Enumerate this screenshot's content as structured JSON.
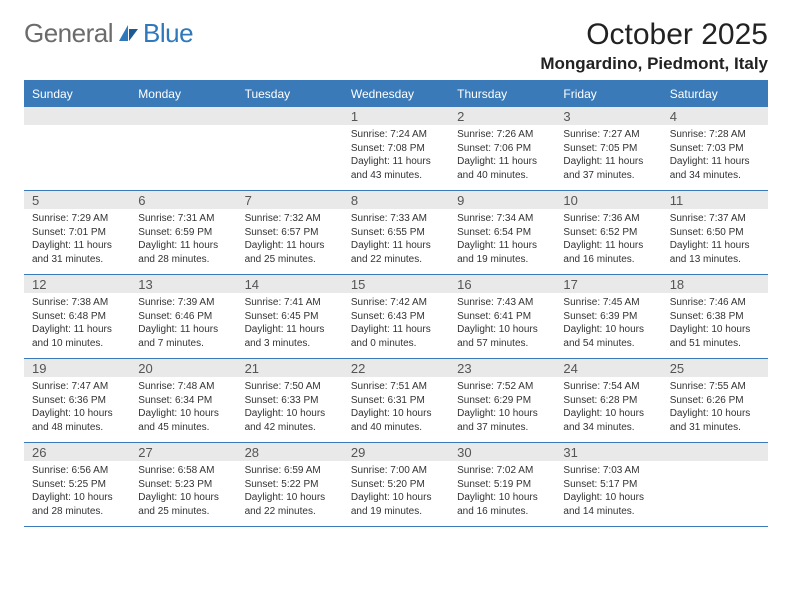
{
  "brand": {
    "general": "General",
    "blue": "Blue"
  },
  "title": "October 2025",
  "location": "Mongardino, Piedmont, Italy",
  "colors": {
    "accent": "#3a7ab8",
    "daynum_bg": "#e9e9e9",
    "text": "#333333",
    "muted": "#6b6b6b",
    "white": "#ffffff"
  },
  "dow": [
    "Sunday",
    "Monday",
    "Tuesday",
    "Wednesday",
    "Thursday",
    "Friday",
    "Saturday"
  ],
  "weeks": [
    {
      "daynums": [
        "",
        "",
        "",
        "1",
        "2",
        "3",
        "4"
      ],
      "cells": [
        null,
        null,
        null,
        {
          "sunrise": "Sunrise: 7:24 AM",
          "sunset": "Sunset: 7:08 PM",
          "day1": "Daylight: 11 hours",
          "day2": "and 43 minutes."
        },
        {
          "sunrise": "Sunrise: 7:26 AM",
          "sunset": "Sunset: 7:06 PM",
          "day1": "Daylight: 11 hours",
          "day2": "and 40 minutes."
        },
        {
          "sunrise": "Sunrise: 7:27 AM",
          "sunset": "Sunset: 7:05 PM",
          "day1": "Daylight: 11 hours",
          "day2": "and 37 minutes."
        },
        {
          "sunrise": "Sunrise: 7:28 AM",
          "sunset": "Sunset: 7:03 PM",
          "day1": "Daylight: 11 hours",
          "day2": "and 34 minutes."
        }
      ]
    },
    {
      "daynums": [
        "5",
        "6",
        "7",
        "8",
        "9",
        "10",
        "11"
      ],
      "cells": [
        {
          "sunrise": "Sunrise: 7:29 AM",
          "sunset": "Sunset: 7:01 PM",
          "day1": "Daylight: 11 hours",
          "day2": "and 31 minutes."
        },
        {
          "sunrise": "Sunrise: 7:31 AM",
          "sunset": "Sunset: 6:59 PM",
          "day1": "Daylight: 11 hours",
          "day2": "and 28 minutes."
        },
        {
          "sunrise": "Sunrise: 7:32 AM",
          "sunset": "Sunset: 6:57 PM",
          "day1": "Daylight: 11 hours",
          "day2": "and 25 minutes."
        },
        {
          "sunrise": "Sunrise: 7:33 AM",
          "sunset": "Sunset: 6:55 PM",
          "day1": "Daylight: 11 hours",
          "day2": "and 22 minutes."
        },
        {
          "sunrise": "Sunrise: 7:34 AM",
          "sunset": "Sunset: 6:54 PM",
          "day1": "Daylight: 11 hours",
          "day2": "and 19 minutes."
        },
        {
          "sunrise": "Sunrise: 7:36 AM",
          "sunset": "Sunset: 6:52 PM",
          "day1": "Daylight: 11 hours",
          "day2": "and 16 minutes."
        },
        {
          "sunrise": "Sunrise: 7:37 AM",
          "sunset": "Sunset: 6:50 PM",
          "day1": "Daylight: 11 hours",
          "day2": "and 13 minutes."
        }
      ]
    },
    {
      "daynums": [
        "12",
        "13",
        "14",
        "15",
        "16",
        "17",
        "18"
      ],
      "cells": [
        {
          "sunrise": "Sunrise: 7:38 AM",
          "sunset": "Sunset: 6:48 PM",
          "day1": "Daylight: 11 hours",
          "day2": "and 10 minutes."
        },
        {
          "sunrise": "Sunrise: 7:39 AM",
          "sunset": "Sunset: 6:46 PM",
          "day1": "Daylight: 11 hours",
          "day2": "and 7 minutes."
        },
        {
          "sunrise": "Sunrise: 7:41 AM",
          "sunset": "Sunset: 6:45 PM",
          "day1": "Daylight: 11 hours",
          "day2": "and 3 minutes."
        },
        {
          "sunrise": "Sunrise: 7:42 AM",
          "sunset": "Sunset: 6:43 PM",
          "day1": "Daylight: 11 hours",
          "day2": "and 0 minutes."
        },
        {
          "sunrise": "Sunrise: 7:43 AM",
          "sunset": "Sunset: 6:41 PM",
          "day1": "Daylight: 10 hours",
          "day2": "and 57 minutes."
        },
        {
          "sunrise": "Sunrise: 7:45 AM",
          "sunset": "Sunset: 6:39 PM",
          "day1": "Daylight: 10 hours",
          "day2": "and 54 minutes."
        },
        {
          "sunrise": "Sunrise: 7:46 AM",
          "sunset": "Sunset: 6:38 PM",
          "day1": "Daylight: 10 hours",
          "day2": "and 51 minutes."
        }
      ]
    },
    {
      "daynums": [
        "19",
        "20",
        "21",
        "22",
        "23",
        "24",
        "25"
      ],
      "cells": [
        {
          "sunrise": "Sunrise: 7:47 AM",
          "sunset": "Sunset: 6:36 PM",
          "day1": "Daylight: 10 hours",
          "day2": "and 48 minutes."
        },
        {
          "sunrise": "Sunrise: 7:48 AM",
          "sunset": "Sunset: 6:34 PM",
          "day1": "Daylight: 10 hours",
          "day2": "and 45 minutes."
        },
        {
          "sunrise": "Sunrise: 7:50 AM",
          "sunset": "Sunset: 6:33 PM",
          "day1": "Daylight: 10 hours",
          "day2": "and 42 minutes."
        },
        {
          "sunrise": "Sunrise: 7:51 AM",
          "sunset": "Sunset: 6:31 PM",
          "day1": "Daylight: 10 hours",
          "day2": "and 40 minutes."
        },
        {
          "sunrise": "Sunrise: 7:52 AM",
          "sunset": "Sunset: 6:29 PM",
          "day1": "Daylight: 10 hours",
          "day2": "and 37 minutes."
        },
        {
          "sunrise": "Sunrise: 7:54 AM",
          "sunset": "Sunset: 6:28 PM",
          "day1": "Daylight: 10 hours",
          "day2": "and 34 minutes."
        },
        {
          "sunrise": "Sunrise: 7:55 AM",
          "sunset": "Sunset: 6:26 PM",
          "day1": "Daylight: 10 hours",
          "day2": "and 31 minutes."
        }
      ]
    },
    {
      "daynums": [
        "26",
        "27",
        "28",
        "29",
        "30",
        "31",
        ""
      ],
      "cells": [
        {
          "sunrise": "Sunrise: 6:56 AM",
          "sunset": "Sunset: 5:25 PM",
          "day1": "Daylight: 10 hours",
          "day2": "and 28 minutes."
        },
        {
          "sunrise": "Sunrise: 6:58 AM",
          "sunset": "Sunset: 5:23 PM",
          "day1": "Daylight: 10 hours",
          "day2": "and 25 minutes."
        },
        {
          "sunrise": "Sunrise: 6:59 AM",
          "sunset": "Sunset: 5:22 PM",
          "day1": "Daylight: 10 hours",
          "day2": "and 22 minutes."
        },
        {
          "sunrise": "Sunrise: 7:00 AM",
          "sunset": "Sunset: 5:20 PM",
          "day1": "Daylight: 10 hours",
          "day2": "and 19 minutes."
        },
        {
          "sunrise": "Sunrise: 7:02 AM",
          "sunset": "Sunset: 5:19 PM",
          "day1": "Daylight: 10 hours",
          "day2": "and 16 minutes."
        },
        {
          "sunrise": "Sunrise: 7:03 AM",
          "sunset": "Sunset: 5:17 PM",
          "day1": "Daylight: 10 hours",
          "day2": "and 14 minutes."
        },
        null
      ]
    }
  ]
}
